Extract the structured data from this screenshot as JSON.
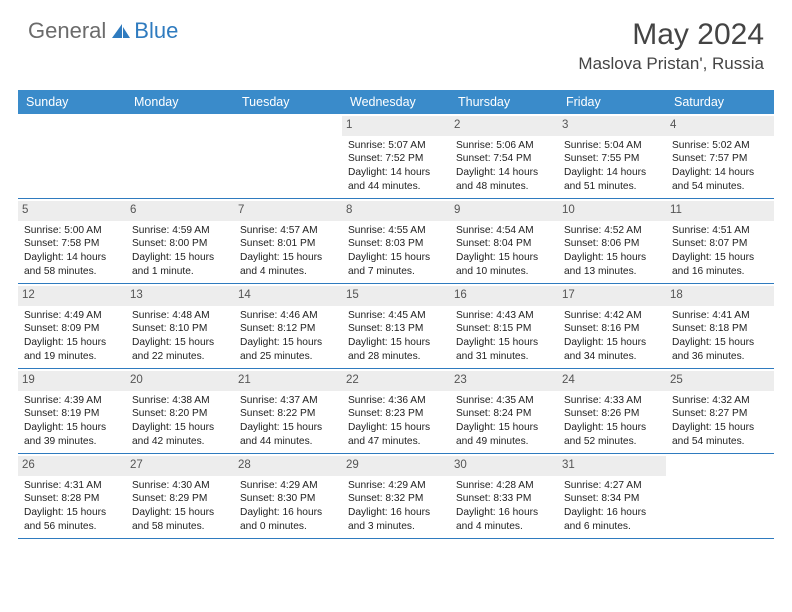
{
  "brand": {
    "name_a": "General",
    "name_b": "Blue"
  },
  "title": "May 2024",
  "location": "Maslova Pristan', Russia",
  "day_names": [
    "Sunday",
    "Monday",
    "Tuesday",
    "Wednesday",
    "Thursday",
    "Friday",
    "Saturday"
  ],
  "colors": {
    "header_bg": "#3a8bca",
    "border": "#2f7bbf",
    "daynum_bg": "#ededed",
    "logo_gray": "#6b6b6b",
    "logo_blue": "#2f7bbf"
  },
  "weeks": [
    [
      {
        "n": "",
        "sr": "",
        "ss": "",
        "dl": ""
      },
      {
        "n": "",
        "sr": "",
        "ss": "",
        "dl": ""
      },
      {
        "n": "",
        "sr": "",
        "ss": "",
        "dl": ""
      },
      {
        "n": "1",
        "sr": "Sunrise: 5:07 AM",
        "ss": "Sunset: 7:52 PM",
        "dl": "Daylight: 14 hours and 44 minutes."
      },
      {
        "n": "2",
        "sr": "Sunrise: 5:06 AM",
        "ss": "Sunset: 7:54 PM",
        "dl": "Daylight: 14 hours and 48 minutes."
      },
      {
        "n": "3",
        "sr": "Sunrise: 5:04 AM",
        "ss": "Sunset: 7:55 PM",
        "dl": "Daylight: 14 hours and 51 minutes."
      },
      {
        "n": "4",
        "sr": "Sunrise: 5:02 AM",
        "ss": "Sunset: 7:57 PM",
        "dl": "Daylight: 14 hours and 54 minutes."
      }
    ],
    [
      {
        "n": "5",
        "sr": "Sunrise: 5:00 AM",
        "ss": "Sunset: 7:58 PM",
        "dl": "Daylight: 14 hours and 58 minutes."
      },
      {
        "n": "6",
        "sr": "Sunrise: 4:59 AM",
        "ss": "Sunset: 8:00 PM",
        "dl": "Daylight: 15 hours and 1 minute."
      },
      {
        "n": "7",
        "sr": "Sunrise: 4:57 AM",
        "ss": "Sunset: 8:01 PM",
        "dl": "Daylight: 15 hours and 4 minutes."
      },
      {
        "n": "8",
        "sr": "Sunrise: 4:55 AM",
        "ss": "Sunset: 8:03 PM",
        "dl": "Daylight: 15 hours and 7 minutes."
      },
      {
        "n": "9",
        "sr": "Sunrise: 4:54 AM",
        "ss": "Sunset: 8:04 PM",
        "dl": "Daylight: 15 hours and 10 minutes."
      },
      {
        "n": "10",
        "sr": "Sunrise: 4:52 AM",
        "ss": "Sunset: 8:06 PM",
        "dl": "Daylight: 15 hours and 13 minutes."
      },
      {
        "n": "11",
        "sr": "Sunrise: 4:51 AM",
        "ss": "Sunset: 8:07 PM",
        "dl": "Daylight: 15 hours and 16 minutes."
      }
    ],
    [
      {
        "n": "12",
        "sr": "Sunrise: 4:49 AM",
        "ss": "Sunset: 8:09 PM",
        "dl": "Daylight: 15 hours and 19 minutes."
      },
      {
        "n": "13",
        "sr": "Sunrise: 4:48 AM",
        "ss": "Sunset: 8:10 PM",
        "dl": "Daylight: 15 hours and 22 minutes."
      },
      {
        "n": "14",
        "sr": "Sunrise: 4:46 AM",
        "ss": "Sunset: 8:12 PM",
        "dl": "Daylight: 15 hours and 25 minutes."
      },
      {
        "n": "15",
        "sr": "Sunrise: 4:45 AM",
        "ss": "Sunset: 8:13 PM",
        "dl": "Daylight: 15 hours and 28 minutes."
      },
      {
        "n": "16",
        "sr": "Sunrise: 4:43 AM",
        "ss": "Sunset: 8:15 PM",
        "dl": "Daylight: 15 hours and 31 minutes."
      },
      {
        "n": "17",
        "sr": "Sunrise: 4:42 AM",
        "ss": "Sunset: 8:16 PM",
        "dl": "Daylight: 15 hours and 34 minutes."
      },
      {
        "n": "18",
        "sr": "Sunrise: 4:41 AM",
        "ss": "Sunset: 8:18 PM",
        "dl": "Daylight: 15 hours and 36 minutes."
      }
    ],
    [
      {
        "n": "19",
        "sr": "Sunrise: 4:39 AM",
        "ss": "Sunset: 8:19 PM",
        "dl": "Daylight: 15 hours and 39 minutes."
      },
      {
        "n": "20",
        "sr": "Sunrise: 4:38 AM",
        "ss": "Sunset: 8:20 PM",
        "dl": "Daylight: 15 hours and 42 minutes."
      },
      {
        "n": "21",
        "sr": "Sunrise: 4:37 AM",
        "ss": "Sunset: 8:22 PM",
        "dl": "Daylight: 15 hours and 44 minutes."
      },
      {
        "n": "22",
        "sr": "Sunrise: 4:36 AM",
        "ss": "Sunset: 8:23 PM",
        "dl": "Daylight: 15 hours and 47 minutes."
      },
      {
        "n": "23",
        "sr": "Sunrise: 4:35 AM",
        "ss": "Sunset: 8:24 PM",
        "dl": "Daylight: 15 hours and 49 minutes."
      },
      {
        "n": "24",
        "sr": "Sunrise: 4:33 AM",
        "ss": "Sunset: 8:26 PM",
        "dl": "Daylight: 15 hours and 52 minutes."
      },
      {
        "n": "25",
        "sr": "Sunrise: 4:32 AM",
        "ss": "Sunset: 8:27 PM",
        "dl": "Daylight: 15 hours and 54 minutes."
      }
    ],
    [
      {
        "n": "26",
        "sr": "Sunrise: 4:31 AM",
        "ss": "Sunset: 8:28 PM",
        "dl": "Daylight: 15 hours and 56 minutes."
      },
      {
        "n": "27",
        "sr": "Sunrise: 4:30 AM",
        "ss": "Sunset: 8:29 PM",
        "dl": "Daylight: 15 hours and 58 minutes."
      },
      {
        "n": "28",
        "sr": "Sunrise: 4:29 AM",
        "ss": "Sunset: 8:30 PM",
        "dl": "Daylight: 16 hours and 0 minutes."
      },
      {
        "n": "29",
        "sr": "Sunrise: 4:29 AM",
        "ss": "Sunset: 8:32 PM",
        "dl": "Daylight: 16 hours and 3 minutes."
      },
      {
        "n": "30",
        "sr": "Sunrise: 4:28 AM",
        "ss": "Sunset: 8:33 PM",
        "dl": "Daylight: 16 hours and 4 minutes."
      },
      {
        "n": "31",
        "sr": "Sunrise: 4:27 AM",
        "ss": "Sunset: 8:34 PM",
        "dl": "Daylight: 16 hours and 6 minutes."
      },
      {
        "n": "",
        "sr": "",
        "ss": "",
        "dl": ""
      }
    ]
  ]
}
